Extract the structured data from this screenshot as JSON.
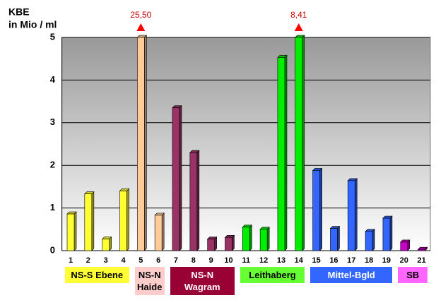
{
  "chart_data": {
    "type": "bar",
    "axis_title": [
      "KBE",
      "in Mio / ml"
    ],
    "ylim": [
      0,
      5
    ],
    "yticks": [
      0,
      1,
      2,
      3,
      4,
      5
    ],
    "grid": true,
    "groups": [
      {
        "name": "NS-S Ebene",
        "color": "#ffff33",
        "label_bg": "#ffff33",
        "label_color": "#000000",
        "categories": [
          "1",
          "2",
          "3",
          "4"
        ],
        "values": [
          0.86,
          1.33,
          0.27,
          1.4
        ]
      },
      {
        "name": "NS-N\nHaide",
        "color": "#ffcc99",
        "label_bg": "#ffcccc",
        "label_color": "#000000",
        "categories": [
          "5",
          "6"
        ],
        "values": [
          25.5,
          0.83
        ],
        "value_labels": [
          "25,50",
          null
        ]
      },
      {
        "name": "NS-N\nWagram",
        "color": "#993366",
        "label_bg": "#990033",
        "label_color": "#ffffff",
        "categories": [
          "7",
          "8",
          "9",
          "10"
        ],
        "values": [
          3.35,
          2.3,
          0.27,
          0.31
        ]
      },
      {
        "name": "Leithaberg",
        "color": "#00ee00",
        "label_bg": "#66ff33",
        "label_color": "#000000",
        "categories": [
          "11",
          "12",
          "13",
          "14"
        ],
        "values": [
          0.55,
          0.5,
          4.53,
          8.41
        ],
        "value_labels": [
          null,
          null,
          null,
          "8,41"
        ]
      },
      {
        "name": "Mittel-Bgld",
        "color": "#3366ff",
        "label_bg": "#3366ff",
        "label_color": "#ffffff",
        "categories": [
          "15",
          "16",
          "17",
          "18",
          "19"
        ],
        "values": [
          1.88,
          0.52,
          1.64,
          0.45,
          0.76
        ]
      },
      {
        "name": "SB",
        "color": "#cc00cc",
        "label_bg": "#ff66ff",
        "label_color": "#000000",
        "categories": [
          "20",
          "21"
        ],
        "values": [
          0.2,
          0.03
        ]
      }
    ]
  }
}
